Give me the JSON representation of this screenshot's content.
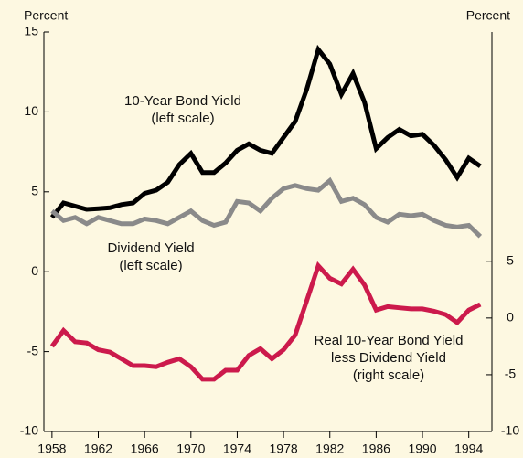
{
  "chart_data": {
    "type": "line",
    "y_label": "Percent",
    "y2_label": "Percent",
    "x": [
      1958,
      1959,
      1960,
      1961,
      1962,
      1963,
      1964,
      1965,
      1966,
      1967,
      1968,
      1969,
      1970,
      1971,
      1972,
      1973,
      1974,
      1975,
      1976,
      1977,
      1978,
      1979,
      1980,
      1981,
      1982,
      1983,
      1984,
      1985,
      1986,
      1987,
      1988,
      1989,
      1990,
      1991,
      1992,
      1993,
      1994,
      1995
    ],
    "xlim": [
      1957.3,
      1996
    ],
    "xticks": [
      1958,
      1962,
      1966,
      1970,
      1974,
      1978,
      1982,
      1986,
      1990,
      1994
    ],
    "ylim": [
      -10,
      15
    ],
    "yticks": [
      -10,
      -5,
      0,
      5,
      10,
      15
    ],
    "y2lim": [
      -10,
      25.2
    ],
    "y2ticks": [
      -10,
      -5,
      0,
      5
    ],
    "series": [
      {
        "name": "10-Year Bond Yield",
        "color": "#000000",
        "axis": "y",
        "values": [
          3.4,
          4.3,
          4.1,
          3.9,
          3.95,
          4.0,
          4.2,
          4.3,
          4.9,
          5.1,
          5.6,
          6.7,
          7.4,
          6.2,
          6.2,
          6.8,
          7.6,
          8.0,
          7.6,
          7.4,
          8.4,
          9.4,
          11.4,
          13.9,
          13.0,
          11.1,
          12.4,
          10.6,
          7.7,
          8.4,
          8.9,
          8.5,
          8.6,
          7.9,
          7.0,
          5.9,
          7.1,
          6.6
        ]
      },
      {
        "name": "Dividend Yield",
        "color": "#8a8a8a",
        "axis": "y",
        "values": [
          3.8,
          3.2,
          3.4,
          3.0,
          3.4,
          3.2,
          3.0,
          3.0,
          3.3,
          3.2,
          3.0,
          3.4,
          3.8,
          3.2,
          2.9,
          3.1,
          4.4,
          4.3,
          3.8,
          4.6,
          5.2,
          5.4,
          5.2,
          5.1,
          5.7,
          4.4,
          4.6,
          4.2,
          3.4,
          3.1,
          3.6,
          3.5,
          3.6,
          3.2,
          2.9,
          2.8,
          2.9,
          2.2
        ]
      },
      {
        "name": "Real 10-Year Bond Yield less Dividend Yield",
        "color": "#cc1a4c",
        "axis": "y2",
        "values": [
          -2.5,
          -1.1,
          -2.1,
          -2.2,
          -2.8,
          -3.0,
          -3.6,
          -4.2,
          -4.2,
          -4.3,
          -3.9,
          -3.6,
          -4.3,
          -5.4,
          -5.4,
          -4.6,
          -4.6,
          -3.3,
          -2.7,
          -3.6,
          -2.8,
          -1.5,
          1.5,
          4.6,
          3.5,
          3.0,
          4.3,
          2.9,
          0.7,
          1.0,
          0.9,
          0.8,
          0.8,
          0.6,
          0.3,
          -0.4,
          0.7,
          1.2
        ]
      }
    ],
    "annotations": [
      [
        "10-Year Bond Yield",
        "(left scale)"
      ],
      [
        "Dividend Yield",
        "(left scale)"
      ],
      [
        "Real 10-Year Bond Yield",
        "less Dividend Yield",
        "(right scale)"
      ]
    ]
  }
}
